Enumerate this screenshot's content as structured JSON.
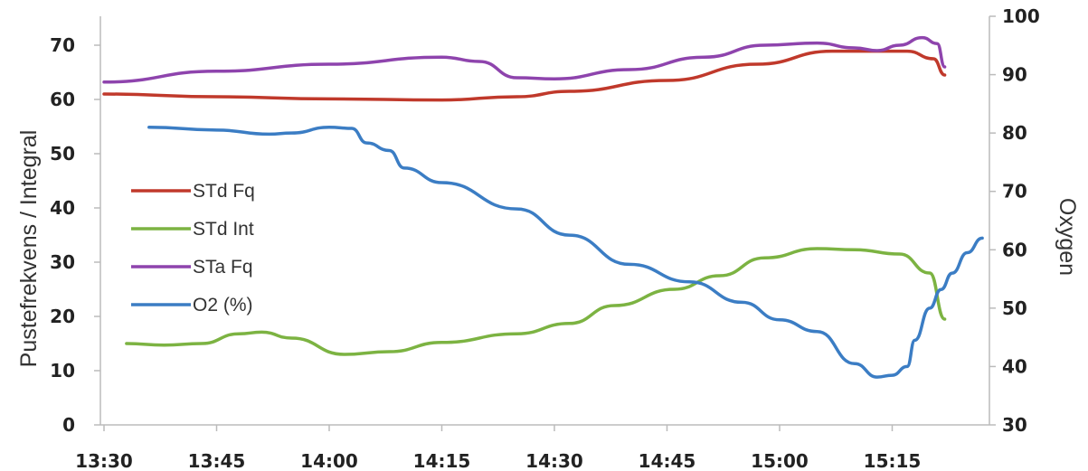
{
  "chart_data": {
    "type": "line",
    "title": "",
    "xlabel": "",
    "ylabel": "Pustefrekvens / Integral",
    "y2label": "Oxygen",
    "x_ticks": [
      "13:30",
      "13:45",
      "14:00",
      "14:15",
      "14:30",
      "14:45",
      "15:00",
      "15:15"
    ],
    "y_ticks": [
      "0",
      "10",
      "20",
      "30",
      "40",
      "50",
      "60",
      "70"
    ],
    "y2_ticks": [
      "30",
      "40",
      "50",
      "60",
      "70",
      "80",
      "90",
      "100"
    ],
    "xlim_minutes_after_1330": [
      0,
      112
    ],
    "ylim": [
      0,
      75
    ],
    "y2lim": [
      30,
      100
    ],
    "grid": false,
    "legend_position": "left-center",
    "series": [
      {
        "name": "STd Fq",
        "axis": "left",
        "color": "#c0392b",
        "points": [
          [
            0,
            61
          ],
          [
            15,
            60.5
          ],
          [
            30,
            60.1
          ],
          [
            45,
            59.9
          ],
          [
            55,
            60.5
          ],
          [
            62,
            61.5
          ],
          [
            75,
            63.5
          ],
          [
            87,
            66.5
          ],
          [
            97,
            68.9
          ],
          [
            107,
            68.9
          ],
          [
            110.5,
            67.5
          ],
          [
            112,
            64.5
          ]
        ]
      },
      {
        "name": "STd Int",
        "axis": "left",
        "color": "#7cb342",
        "points": [
          [
            3,
            15
          ],
          [
            8,
            14.7
          ],
          [
            13,
            15
          ],
          [
            18,
            16.8
          ],
          [
            21,
            17.1
          ],
          [
            25,
            16
          ],
          [
            32,
            13
          ],
          [
            38,
            13.5
          ],
          [
            45,
            15.2
          ],
          [
            55,
            16.8
          ],
          [
            62,
            18.7
          ],
          [
            68,
            22
          ],
          [
            76,
            25
          ],
          [
            82,
            27.5
          ],
          [
            88,
            30.8
          ],
          [
            95,
            32.5
          ],
          [
            100,
            32.3
          ],
          [
            106,
            31.5
          ],
          [
            110,
            28
          ],
          [
            112,
            19.5
          ]
        ]
      },
      {
        "name": "STa Fq",
        "axis": "left",
        "color": "#8e44ad",
        "points": [
          [
            0,
            63.2
          ],
          [
            15,
            65.2
          ],
          [
            30,
            66.5
          ],
          [
            45,
            67.8
          ],
          [
            50,
            67
          ],
          [
            55,
            64
          ],
          [
            60,
            63.8
          ],
          [
            70,
            65.5
          ],
          [
            80,
            67.8
          ],
          [
            88,
            70
          ],
          [
            95,
            70.4
          ],
          [
            100,
            69.5
          ],
          [
            103,
            69
          ],
          [
            106,
            70
          ],
          [
            109,
            71.4
          ],
          [
            111,
            70.3
          ],
          [
            112,
            66
          ]
        ]
      },
      {
        "name": "O2 (%)",
        "axis": "right",
        "color": "#3b7dc4",
        "points": [
          [
            6,
            81
          ],
          [
            15,
            80.5
          ],
          [
            22,
            79.8
          ],
          [
            25,
            80
          ],
          [
            30,
            81
          ],
          [
            33,
            80.8
          ],
          [
            35,
            78.3
          ],
          [
            38,
            77
          ],
          [
            40,
            74
          ],
          [
            45,
            71.5
          ],
          [
            55,
            67
          ],
          [
            62,
            62.5
          ],
          [
            70,
            57.5
          ],
          [
            78,
            54.5
          ],
          [
            85,
            51
          ],
          [
            90,
            48
          ],
          [
            95,
            46
          ],
          [
            100,
            40.5
          ],
          [
            103,
            38.2
          ],
          [
            105,
            38.5
          ],
          [
            107,
            40
          ],
          [
            108,
            44.5
          ],
          [
            110,
            50
          ],
          [
            111.5,
            53.2
          ],
          [
            113,
            56
          ],
          [
            115,
            59.5
          ],
          [
            117,
            62
          ]
        ]
      }
    ]
  }
}
